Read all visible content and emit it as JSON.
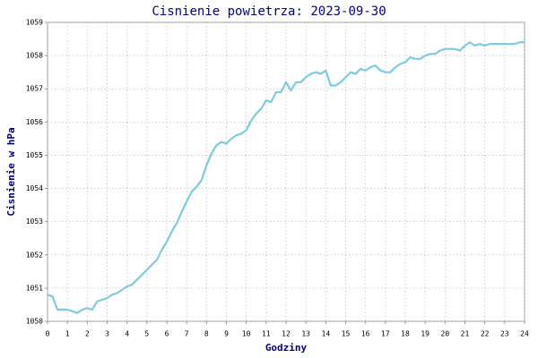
{
  "chart_data": {
    "type": "line",
    "title": "Cisnienie powietrza: 2023-09-30",
    "x_label": "Godziny",
    "y_label": "Cisnienie w hPa",
    "x": [
      0,
      0.25,
      0.5,
      0.75,
      1,
      1.25,
      1.5,
      1.75,
      2,
      2.25,
      2.5,
      2.75,
      3,
      3.25,
      3.5,
      3.75,
      4,
      4.25,
      4.5,
      4.75,
      5,
      5.25,
      5.5,
      5.75,
      6,
      6.25,
      6.5,
      6.75,
      7,
      7.25,
      7.5,
      7.75,
      8,
      8.25,
      8.5,
      8.75,
      9,
      9.25,
      9.5,
      9.75,
      10,
      10.25,
      10.5,
      10.75,
      11,
      11.25,
      11.5,
      11.75,
      12,
      12.25,
      12.5,
      12.75,
      13,
      13.25,
      13.5,
      13.75,
      14,
      14.25,
      14.5,
      14.75,
      15,
      15.25,
      15.5,
      15.75,
      16,
      16.25,
      16.5,
      16.75,
      17,
      17.25,
      17.5,
      17.75,
      18,
      18.25,
      18.5,
      18.75,
      19,
      19.25,
      19.5,
      19.75,
      20,
      20.25,
      20.5,
      20.75,
      21,
      21.25,
      21.5,
      21.75,
      22,
      22.25,
      22.5,
      22.75,
      23,
      23.25,
      23.5,
      23.75,
      24
    ],
    "series": [
      {
        "name": "Cisnienie",
        "color": "#7ecbe0",
        "values": [
          1050.8,
          1050.75,
          1050.35,
          1050.35,
          1050.35,
          1050.3,
          1050.25,
          1050.35,
          1050.4,
          1050.35,
          1050.6,
          1050.65,
          1050.7,
          1050.8,
          1050.85,
          1050.95,
          1051.05,
          1051.1,
          1051.25,
          1051.4,
          1051.55,
          1051.7,
          1051.85,
          1052.15,
          1052.4,
          1052.7,
          1052.95,
          1053.3,
          1053.6,
          1053.9,
          1054.05,
          1054.25,
          1054.7,
          1055.05,
          1055.3,
          1055.4,
          1055.35,
          1055.5,
          1055.6,
          1055.65,
          1055.75,
          1056.05,
          1056.25,
          1056.4,
          1056.65,
          1056.6,
          1056.9,
          1056.9,
          1057.2,
          1056.95,
          1057.2,
          1057.2,
          1057.35,
          1057.45,
          1057.5,
          1057.45,
          1057.55,
          1057.1,
          1057.1,
          1057.2,
          1057.35,
          1057.5,
          1057.45,
          1057.6,
          1057.55,
          1057.65,
          1057.7,
          1057.55,
          1057.5,
          1057.5,
          1057.65,
          1057.75,
          1057.8,
          1057.95,
          1057.9,
          1057.9,
          1058.0,
          1058.05,
          1058.05,
          1058.15,
          1058.2,
          1058.2,
          1058.2,
          1058.15,
          1058.3,
          1058.4,
          1058.3,
          1058.35,
          1058.3,
          1058.35,
          1058.35,
          1058.35,
          1058.35,
          1058.35,
          1058.35,
          1058.4,
          1058.4
        ]
      }
    ],
    "xlim": [
      0,
      24
    ],
    "xticks": [
      0,
      1,
      2,
      3,
      4,
      5,
      6,
      7,
      8,
      9,
      10,
      11,
      12,
      13,
      14,
      15,
      16,
      17,
      18,
      19,
      20,
      21,
      22,
      23,
      24
    ],
    "ylim": [
      1050,
      1059
    ],
    "yticks": [
      1050,
      1051,
      1052,
      1053,
      1054,
      1055,
      1056,
      1057,
      1058,
      1059
    ],
    "grid": true
  }
}
